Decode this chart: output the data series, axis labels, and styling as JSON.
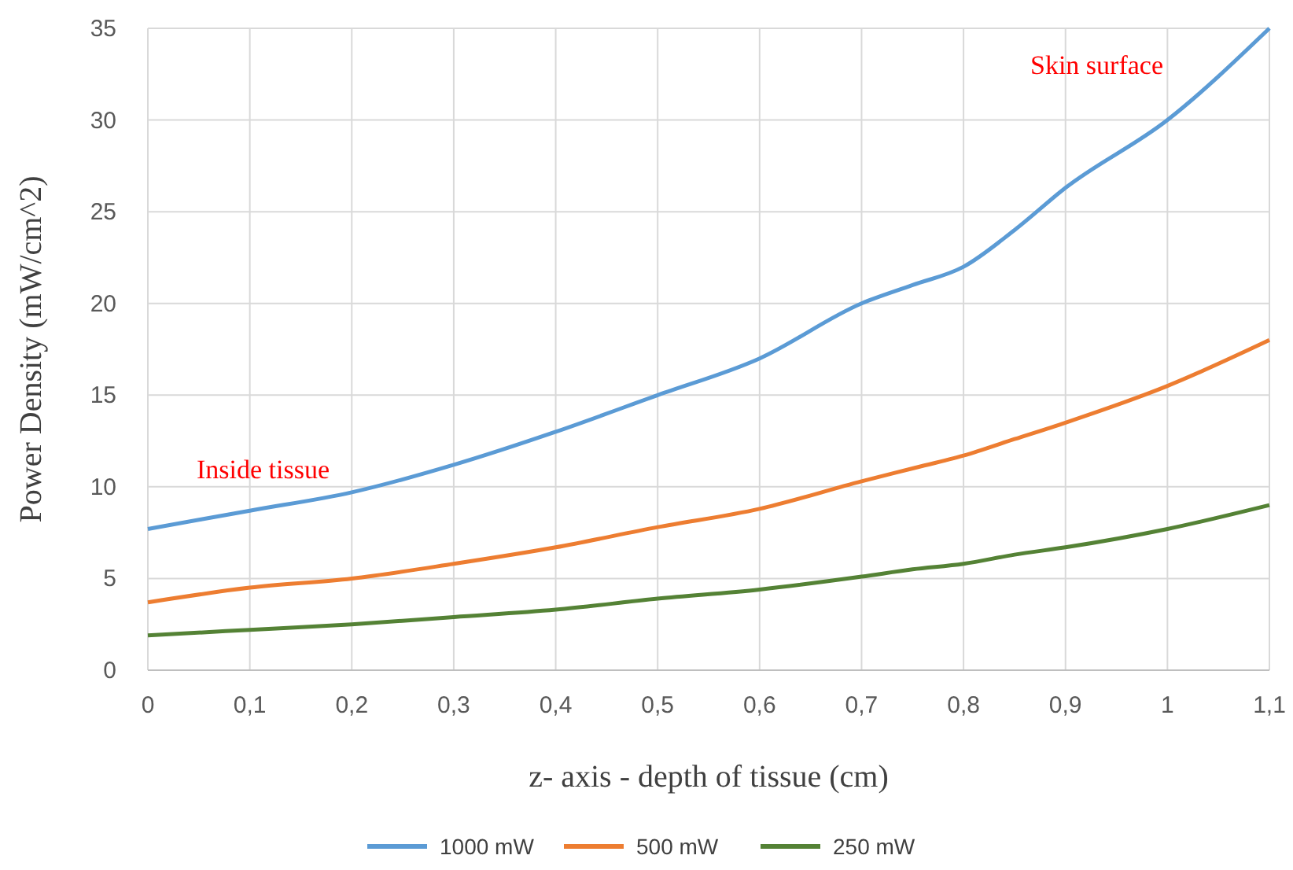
{
  "chart_data": {
    "type": "line",
    "xlabel": "z- axis - depth of tissue  (cm)",
    "ylabel": "Power Density  (mW/cm^2)",
    "x": [
      0,
      0.1,
      0.2,
      0.3,
      0.4,
      0.5,
      0.6,
      0.7,
      0.75,
      0.8,
      0.85,
      0.9,
      1.0,
      1.1
    ],
    "series": [
      {
        "name": "1000 mW",
        "color": "#5b9bd5",
        "values": [
          7.7,
          8.7,
          9.7,
          11.2,
          13,
          15,
          17,
          20,
          21,
          22,
          24,
          26.3,
          30,
          35
        ]
      },
      {
        "name": "500 mW",
        "color": "#ed7d31",
        "values": [
          3.7,
          4.5,
          5.0,
          5.8,
          6.7,
          7.8,
          8.8,
          10.3,
          11,
          11.7,
          12.6,
          13.5,
          15.5,
          18
        ]
      },
      {
        "name": "250 mW",
        "color": "#548235",
        "values": [
          1.9,
          2.2,
          2.5,
          2.9,
          3.3,
          3.9,
          4.4,
          5.1,
          5.5,
          5.8,
          6.3,
          6.7,
          7.7,
          9.0
        ]
      }
    ],
    "xlim": [
      0,
      1.1
    ],
    "ylim": [
      0,
      35
    ],
    "xticks": [
      0,
      {
        "value": 0.1,
        "label": "0,1"
      },
      {
        "value": 0.2,
        "label": "0,2"
      },
      {
        "value": 0.3,
        "label": "0,3"
      },
      {
        "value": 0.4,
        "label": "0,4"
      },
      {
        "value": 0.5,
        "label": "0,5"
      },
      {
        "value": 0.6,
        "label": "0,6"
      },
      {
        "value": 0.7,
        "label": "0,7"
      },
      {
        "value": 0.8,
        "label": "0,8"
      },
      {
        "value": 0.9,
        "label": "0,9"
      },
      1,
      {
        "value": 1.1,
        "label": "1,1"
      }
    ],
    "yticks": [
      0,
      5,
      10,
      15,
      20,
      25,
      30,
      35
    ],
    "annotations": [
      "Inside tissue",
      "Skin surface"
    ],
    "grid": true,
    "legend": "bottom",
    "marker": "none",
    "line_style": "solid"
  }
}
